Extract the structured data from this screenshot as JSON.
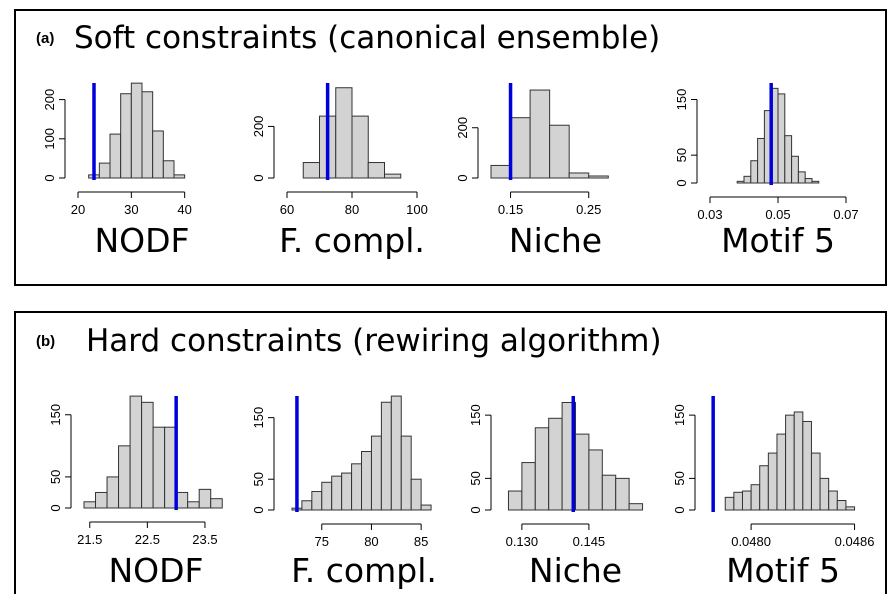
{
  "colors": {
    "bar_fill": "#d3d3d3",
    "bar_stroke": "#333333",
    "observed_line": "#0000dd",
    "frame": "#000000"
  },
  "chart_data": [
    {
      "panel": "(a)",
      "title": "Soft constraints (canonical ensemble)",
      "plots": [
        {
          "type": "bar",
          "xlabel": "NODF",
          "bin_edges": [
            20,
            22,
            24,
            26,
            28,
            30,
            32,
            34,
            36,
            38,
            40
          ],
          "values": [
            0,
            8,
            38,
            112,
            215,
            242,
            220,
            120,
            44,
            8
          ],
          "xlim": [
            20,
            44
          ],
          "xticks": [
            20,
            30,
            40
          ],
          "xtick_labels": [
            "20",
            "30",
            "40"
          ],
          "ylim": [
            0,
            250
          ],
          "yticks": [
            0,
            100,
            200
          ],
          "ytick_labels": [
            "0",
            "100",
            "200"
          ],
          "observed": 23
        },
        {
          "type": "bar",
          "xlabel": "F. compl.",
          "bin_edges": [
            65,
            70,
            75,
            80,
            85,
            90,
            95
          ],
          "values": [
            60,
            240,
            350,
            240,
            60,
            15
          ],
          "xlim": [
            60,
            100
          ],
          "xticks": [
            60,
            80,
            100
          ],
          "xtick_labels": [
            "60",
            "80",
            "100"
          ],
          "ylim": [
            0,
            380
          ],
          "yticks": [
            0,
            200
          ],
          "ytick_labels": [
            "0",
            "200"
          ],
          "observed": 72.5
        },
        {
          "type": "bar",
          "xlabel": "Niche",
          "bin_edges": [
            0.125,
            0.15,
            0.175,
            0.2,
            0.225,
            0.25,
            0.275
          ],
          "values": [
            50,
            240,
            350,
            210,
            20,
            8
          ],
          "xlim": [
            0.125,
            0.29
          ],
          "xticks": [
            0.15,
            0.25
          ],
          "xtick_labels": [
            "0.15",
            "0.25"
          ],
          "ylim": [
            0,
            390
          ],
          "yticks": [
            0,
            200
          ],
          "ytick_labels": [
            "0",
            "200"
          ],
          "observed": 0.15
        },
        {
          "type": "bar",
          "xlabel": "Motif 5",
          "bin_edges": [
            0.038,
            0.04,
            0.042,
            0.044,
            0.046,
            0.048,
            0.05,
            0.052,
            0.054,
            0.056,
            0.058,
            0.06,
            0.062
          ],
          "values": [
            3,
            12,
            40,
            80,
            130,
            170,
            160,
            85,
            48,
            20,
            8,
            3
          ],
          "xlim": [
            0.03,
            0.07
          ],
          "xticks": [
            0.03,
            0.05,
            0.07
          ],
          "xtick_labels": [
            "0.03",
            "0.05",
            "0.07"
          ],
          "ylim": [
            0,
            185
          ],
          "yticks": [
            0,
            50,
            150
          ],
          "ytick_labels": [
            "0",
            "50",
            "150"
          ],
          "observed": 0.048
        }
      ]
    },
    {
      "panel": "(b)",
      "title": "Hard constraints (rewiring algorithm)",
      "plots": [
        {
          "type": "bar",
          "xlabel": "NODF",
          "bin_edges": [
            21.4,
            21.6,
            21.8,
            22,
            22.2,
            22.4,
            22.6,
            22.8,
            23,
            23.2,
            23.4,
            23.6,
            23.8
          ],
          "values": [
            10,
            25,
            50,
            100,
            180,
            170,
            130,
            130,
            25,
            10,
            30,
            15
          ],
          "xlim": [
            21.4,
            23.9
          ],
          "xticks": [
            21.5,
            22.5,
            23.5
          ],
          "xtick_labels": [
            "21.5",
            "22.5",
            "23.5"
          ],
          "ylim": [
            0,
            185
          ],
          "yticks": [
            0,
            50,
            150
          ],
          "ytick_labels": [
            "0",
            "50",
            "150"
          ],
          "observed": 23
        },
        {
          "type": "bar",
          "xlabel": "F. compl.",
          "bin_edges": [
            72,
            73,
            74,
            75,
            76,
            77,
            78,
            79,
            80,
            81,
            82,
            83,
            84,
            85,
            86
          ],
          "values": [
            3,
            15,
            30,
            45,
            55,
            60,
            75,
            95,
            120,
            175,
            185,
            120,
            50,
            8
          ],
          "xlim": [
            71.5,
            87
          ],
          "xticks": [
            75,
            80,
            85
          ],
          "xtick_labels": [
            "75",
            "80",
            "85"
          ],
          "ylim": [
            0,
            190
          ],
          "yticks": [
            0,
            50,
            150
          ],
          "ytick_labels": [
            "0",
            "50",
            "150"
          ],
          "observed": 72.5
        },
        {
          "type": "bar",
          "xlabel": "Niche",
          "bin_edges": [
            0.127,
            0.13,
            0.133,
            0.136,
            0.139,
            0.142,
            0.145,
            0.148,
            0.151,
            0.154,
            0.157
          ],
          "values": [
            30,
            75,
            130,
            145,
            170,
            120,
            95,
            55,
            50,
            10
          ],
          "xlim": [
            0.126,
            0.158
          ],
          "xticks": [
            0.13,
            0.145
          ],
          "xtick_labels": [
            "0.130",
            "0.145"
          ],
          "ylim": [
            0,
            185
          ],
          "yticks": [
            0,
            50,
            150
          ],
          "ytick_labels": [
            "0",
            "50",
            "150"
          ],
          "observed": 0.1415
        },
        {
          "type": "bar",
          "xlabel": "Motif 5",
          "bin_edges": [
            0.04785,
            0.0479,
            0.04795,
            0.048,
            0.04805,
            0.0481,
            0.04815,
            0.0482,
            0.04825,
            0.0483,
            0.04835,
            0.0484,
            0.04845,
            0.0485,
            0.04855,
            0.0486
          ],
          "values": [
            20,
            28,
            30,
            40,
            70,
            90,
            120,
            150,
            155,
            140,
            90,
            50,
            30,
            15,
            5
          ],
          "xlim": [
            0.04775,
            0.04862
          ],
          "xticks": [
            0.048,
            0.0486
          ],
          "xtick_labels": [
            "0.0480",
            "0.0486"
          ],
          "ylim": [
            0,
            185
          ],
          "yticks": [
            0,
            50,
            150
          ],
          "ytick_labels": [
            "0",
            "50",
            "150"
          ],
          "observed": 0.04778
        }
      ]
    }
  ]
}
